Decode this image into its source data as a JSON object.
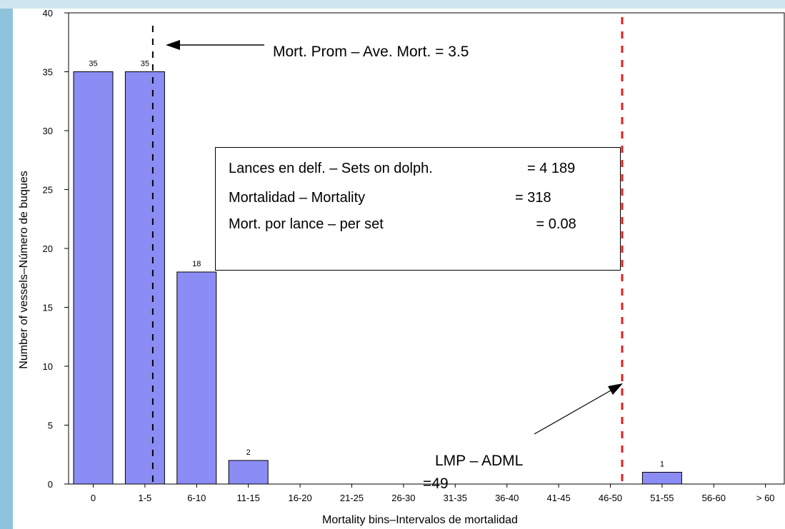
{
  "chart_data": {
    "type": "bar",
    "xlabel": "Mortality bins–Intervalos de mortalidad",
    "ylabel": "Number of vessels–Número de buques",
    "ylim": [
      0,
      40
    ],
    "yticks": [
      0,
      5,
      10,
      15,
      20,
      25,
      30,
      35,
      40
    ],
    "categories": [
      "0",
      "1-5",
      "6-10",
      "11-15",
      "16-20",
      "21-25",
      "26-30",
      "31-35",
      "36-40",
      "41-45",
      "46-50",
      "51-55",
      "56-60",
      "> 60"
    ],
    "values": [
      35,
      35,
      18,
      2,
      0,
      0,
      0,
      0,
      0,
      0,
      0,
      1,
      0,
      0
    ],
    "bar_color": "#8c8cf5",
    "reference_lines": [
      {
        "name": "average",
        "x_value": 3.5,
        "color": "#000000"
      },
      {
        "name": "dml",
        "x_value": 49,
        "color": "#e02020"
      }
    ],
    "annotations": {
      "average_label": "Mort. Prom – Ave. Mort. = 3.5",
      "dml_label_line1": "LMP – ADML",
      "dml_label_line2": "=49"
    },
    "stats_box": [
      {
        "label": "Lances en delf. – Sets on dolph.",
        "value": "= 4 189"
      },
      {
        "label": "Mortalidad – Mortality",
        "value": "= 318"
      },
      {
        "label": "Mort. por lance – per set",
        "value": " = 0.08"
      }
    ]
  }
}
